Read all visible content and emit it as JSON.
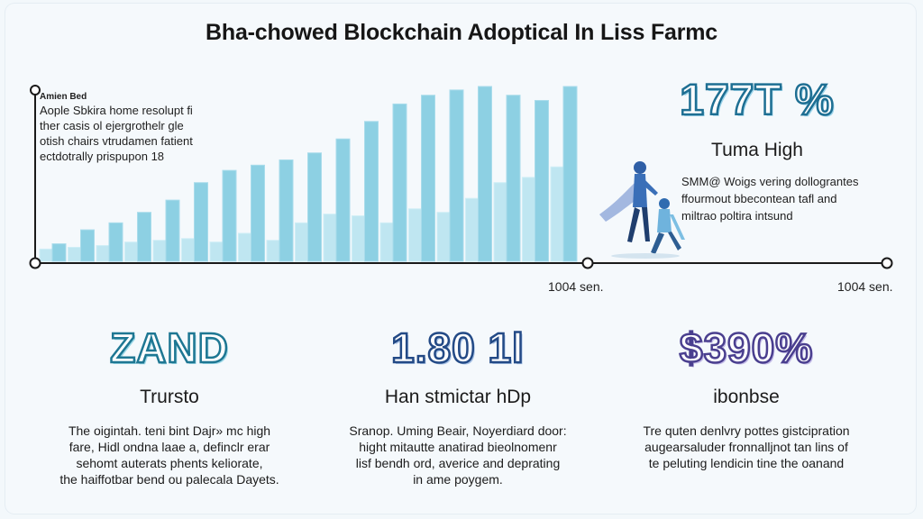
{
  "title": "Bha-chowed Blockchain Adoptical In Liss Farmc",
  "chart_data": {
    "type": "bar",
    "title": "Bha-chowed Blockchain Adoptical In Liss Farmc",
    "series": [
      {
        "values": [
          10,
          18,
          22,
          28,
          35,
          45,
          52,
          55,
          58,
          62,
          70,
          80,
          90,
          95,
          98,
          100,
          95,
          92,
          100
        ]
      },
      {
        "values": [
          7,
          8,
          9,
          11,
          12,
          13,
          11,
          16,
          12,
          22,
          27,
          26,
          22,
          30,
          28,
          36,
          45,
          48,
          54
        ]
      }
    ],
    "x_end_labels": [
      "1004 sen.",
      "1004 sen."
    ],
    "grid": false,
    "legend": "none"
  },
  "chart_note": {
    "heading": "Amien Bed",
    "lines": [
      "Aople Sbkira home resolupt fi",
      "ther casis ol ejergrothelr gle",
      "otish chairs vtrudamen fatient",
      "ectdotrally prispupon 18"
    ]
  },
  "right_stat": {
    "value": "177T %",
    "label": "Tuma High",
    "desc": [
      "SMM@ Woigs vering dollograntes",
      "ffourmout bbecontean tafl and",
      "miltrao poltira intsund"
    ]
  },
  "columns": [
    {
      "value": "ZAND",
      "label": "Trursto",
      "desc": [
        "The oigintah. teni bint Dajr» mc high",
        "fare, Hidl ondna laae a, definclr erar",
        "sehomt auterats phents keliorate,",
        "the haiffotbar bend ou palecala Dayets."
      ]
    },
    {
      "value": "1.80 1l",
      "label": "Han stmictar hDp",
      "desc": [
        "Sranop. Uming Beair, Noyerdiard door:",
        "hight mitautte anatirad bieolnomenr",
        "lisf bendh ord, averice and deprating",
        "in ame poygem."
      ]
    },
    {
      "value": "$390%",
      "label": "ibonbse",
      "desc": [
        "Tre quten denlvry pottes gistcipration",
        "augearsaluder fronnalljnot tan lins of",
        "te peluting lendicin tine the oanand"
      ]
    }
  ],
  "colors": {
    "bar_dark": "#8dd0e3",
    "bar_light": "#bfe6f1",
    "axis": "#1a1a1a",
    "figure_blue": "#2f5fa6"
  },
  "icons": [
    "hikers-illustration"
  ]
}
